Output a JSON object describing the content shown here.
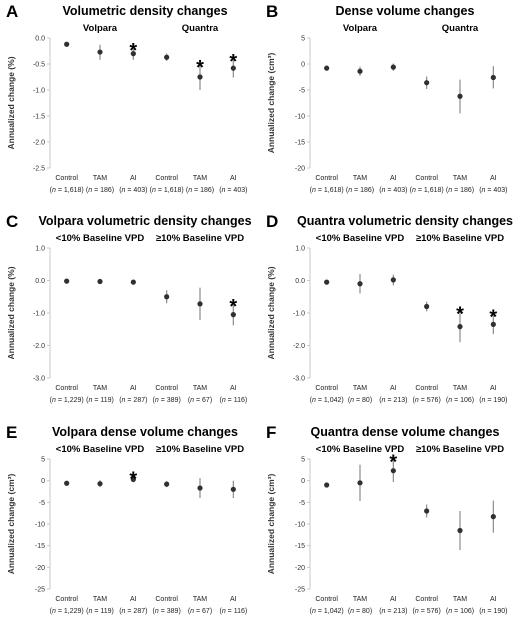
{
  "chart_data": [
    {
      "type": "scatter",
      "panel_label": "A",
      "title": "Volumetric density changes",
      "group_labels": [
        "Volpara",
        "Quantra"
      ],
      "ylabel": "Annualized change (%)",
      "ylim": [
        -2.5,
        0
      ],
      "yticks": [
        "0.0",
        "-0.5",
        "-1.0",
        "-1.5",
        "-2.0",
        "-2.5"
      ],
      "categories": [
        {
          "name": "Control",
          "n": "(n = 1,618)"
        },
        {
          "name": "TAM",
          "n": "(n = 186)"
        },
        {
          "name": "AI",
          "n": "(n = 403)"
        },
        {
          "name": "Control",
          "n": "(n = 1,618)"
        },
        {
          "name": "TAM",
          "n": "(n = 186)"
        },
        {
          "name": "AI",
          "n": "(n = 403)"
        }
      ],
      "series": [
        {
          "values": [
            -0.12,
            -0.27,
            -0.3,
            -0.37,
            -0.75,
            -0.58
          ],
          "err_low": [
            -0.12,
            -0.42,
            -0.42,
            -0.44,
            -1.0,
            -0.76
          ],
          "err_high": [
            -0.12,
            -0.13,
            -0.19,
            -0.3,
            -0.52,
            -0.4
          ]
        }
      ],
      "significant": [
        false,
        false,
        true,
        false,
        true,
        true
      ],
      "star_symbol": "*"
    },
    {
      "type": "scatter",
      "panel_label": "B",
      "title": "Dense volume changes",
      "group_labels": [
        "Volpara",
        "Quantra"
      ],
      "ylabel": "Annualized change (cm³)",
      "ylim": [
        -20,
        5
      ],
      "yticks": [
        "5",
        "0",
        "-5",
        "-10",
        "-15",
        "-20"
      ],
      "categories": [
        {
          "name": "Control",
          "n": "(n = 1,618)"
        },
        {
          "name": "TAM",
          "n": "(n = 186)"
        },
        {
          "name": "AI",
          "n": "(n = 403)"
        },
        {
          "name": "Control",
          "n": "(n = 1,618)"
        },
        {
          "name": "TAM",
          "n": "(n = 186)"
        },
        {
          "name": "AI",
          "n": "(n = 403)"
        }
      ],
      "series": [
        {
          "values": [
            -0.8,
            -1.4,
            -0.6,
            -3.6,
            -6.2,
            -2.6
          ],
          "err_low": [
            -0.8,
            -2.3,
            -1.3,
            -4.8,
            -9.5,
            -4.7
          ],
          "err_high": [
            -0.8,
            -0.5,
            0.1,
            -2.4,
            -3.0,
            -0.4
          ]
        }
      ],
      "significant": [
        false,
        false,
        false,
        false,
        false,
        false
      ],
      "star_symbol": "*"
    },
    {
      "type": "scatter",
      "panel_label": "C",
      "title": "Volpara volumetric density changes",
      "group_labels": [
        "<10% Baseline VPD",
        "≥10% Baseline VPD"
      ],
      "ylabel": "Annualized change (%)",
      "ylim": [
        -3,
        1
      ],
      "yticks": [
        "1.0",
        "0.0",
        "-1.0",
        "-2.0",
        "-3.0"
      ],
      "categories": [
        {
          "name": "Control",
          "n": "(n = 1,229)"
        },
        {
          "name": "TAM",
          "n": "(n = 119)"
        },
        {
          "name": "AI",
          "n": "(n = 287)"
        },
        {
          "name": "Control",
          "n": "(n = 389)"
        },
        {
          "name": "TAM",
          "n": "(n = 67)"
        },
        {
          "name": "AI",
          "n": "(n = 116)"
        }
      ],
      "series": [
        {
          "values": [
            -0.02,
            -0.03,
            -0.05,
            -0.5,
            -0.72,
            -1.05
          ],
          "err_low": [
            -0.02,
            -0.1,
            -0.08,
            -0.7,
            -1.22,
            -1.38
          ],
          "err_high": [
            -0.02,
            0.05,
            -0.02,
            -0.3,
            -0.22,
            -0.72
          ]
        }
      ],
      "significant": [
        false,
        false,
        false,
        false,
        false,
        true
      ],
      "star_symbol": "*"
    },
    {
      "type": "scatter",
      "panel_label": "D",
      "title": "Quantra volumetric density changes",
      "group_labels": [
        "<10% Baseline VPD",
        "≥10% Baseline VPD"
      ],
      "ylabel": "Annualized change (%)",
      "ylim": [
        -3,
        1
      ],
      "yticks": [
        "1.0",
        "0.0",
        "-1.0",
        "-2.0",
        "-3.0"
      ],
      "categories": [
        {
          "name": "Control",
          "n": "(n = 1,042)"
        },
        {
          "name": "TAM",
          "n": "(n = 80)"
        },
        {
          "name": "AI",
          "n": "(n = 213)"
        },
        {
          "name": "Control",
          "n": "(n = 576)"
        },
        {
          "name": "TAM",
          "n": "(n = 106)"
        },
        {
          "name": "AI",
          "n": "(n = 190)"
        }
      ],
      "series": [
        {
          "values": [
            -0.05,
            -0.1,
            0.02,
            -0.8,
            -1.42,
            -1.35
          ],
          "err_low": [
            -0.05,
            -0.4,
            -0.15,
            -0.95,
            -1.9,
            -1.65
          ],
          "err_high": [
            -0.05,
            0.2,
            0.18,
            -0.65,
            -0.95,
            -1.05
          ]
        }
      ],
      "significant": [
        false,
        false,
        false,
        false,
        true,
        true
      ],
      "star_symbol": "*"
    },
    {
      "type": "scatter",
      "panel_label": "E",
      "title": "Volpara dense volume changes",
      "group_labels": [
        "<10% Baseline VPD",
        "≥10% Baseline VPD"
      ],
      "ylabel": "Annualized change (cm³)",
      "ylim": [
        -25,
        5
      ],
      "yticks": [
        "5",
        "0",
        "-5",
        "-10",
        "-15",
        "-20",
        "-25"
      ],
      "categories": [
        {
          "name": "Control",
          "n": "(n = 1,229)"
        },
        {
          "name": "TAM",
          "n": "(n = 119)"
        },
        {
          "name": "AI",
          "n": "(n = 287)"
        },
        {
          "name": "Control",
          "n": "(n = 389)"
        },
        {
          "name": "TAM",
          "n": "(n = 67)"
        },
        {
          "name": "AI",
          "n": "(n = 116)"
        }
      ],
      "series": [
        {
          "values": [
            -0.6,
            -0.7,
            0.3,
            -0.8,
            -1.7,
            -2.0
          ],
          "err_low": [
            -0.6,
            -1.5,
            -0.4,
            -1.5,
            -4.0,
            -4.0
          ],
          "err_high": [
            -0.6,
            0.1,
            1.0,
            -0.1,
            0.6,
            0.0
          ]
        }
      ],
      "significant": [
        false,
        false,
        true,
        false,
        false,
        false
      ],
      "star_symbol": "*"
    },
    {
      "type": "scatter",
      "panel_label": "F",
      "title": "Quantra dense volume changes",
      "group_labels": [
        "<10% Baseline VPD",
        "≥10% Baseline VPD"
      ],
      "ylabel": "Annualized change (cm³)",
      "ylim": [
        -25,
        5
      ],
      "yticks": [
        "5",
        "0",
        "-5",
        "-10",
        "-15",
        "-20",
        "-25"
      ],
      "categories": [
        {
          "name": "Control",
          "n": "(n = 1,042)"
        },
        {
          "name": "TAM",
          "n": "(n = 80)"
        },
        {
          "name": "AI",
          "n": "(n = 213)"
        },
        {
          "name": "Control",
          "n": "(n = 576)"
        },
        {
          "name": "TAM",
          "n": "(n = 106)"
        },
        {
          "name": "AI",
          "n": "(n = 190)"
        }
      ],
      "series": [
        {
          "values": [
            -1.0,
            -0.5,
            2.3,
            -7.0,
            -11.5,
            -8.3
          ],
          "err_low": [
            -1.0,
            -4.7,
            -0.3,
            -8.5,
            -16.0,
            -12.0
          ],
          "err_high": [
            -1.0,
            3.7,
            4.9,
            -5.5,
            -7.0,
            -4.6
          ]
        }
      ],
      "significant": [
        false,
        false,
        true,
        false,
        false,
        false
      ],
      "star_symbol": "*"
    }
  ]
}
